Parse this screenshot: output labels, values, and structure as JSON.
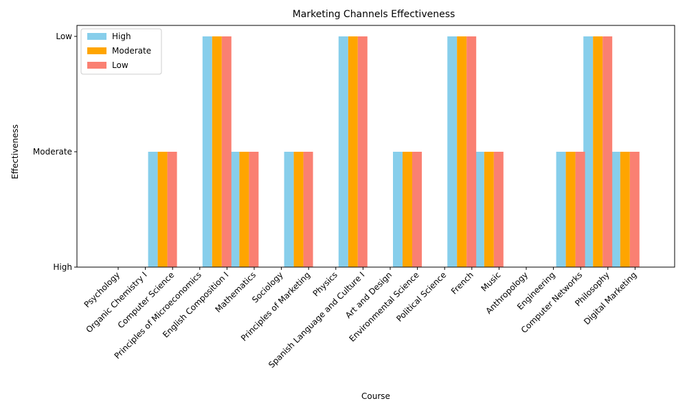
{
  "chart_data": {
    "type": "bar",
    "title": "Marketing Channels Effectiveness",
    "xlabel": "Course",
    "ylabel": "Effectiveness",
    "y_tick_labels": [
      "High",
      "Moderate",
      "Low"
    ],
    "y_tick_values": [
      0,
      1,
      2
    ],
    "ylim": [
      0,
      2
    ],
    "grid": false,
    "legend_position": "top-left",
    "categories": [
      "Psychology",
      "Organic Chemistry I",
      "Computer Science",
      "Principles of Microeconomics",
      "English Composition I",
      "Mathematics",
      "Sociology",
      "Principles of Marketing",
      "Physics",
      "Spanish Language and Culture I",
      "Art and Design",
      "Environmental Science",
      "Political Science",
      "French",
      "Music",
      "Anthropology",
      "Engineering",
      "Computer Networks",
      "Philosophy",
      "Digital Marketing"
    ],
    "series": [
      {
        "name": "High",
        "color": "#87ceeb",
        "values": [
          0,
          1,
          0,
          2,
          1,
          0,
          1,
          0,
          2,
          0,
          1,
          0,
          2,
          1,
          0,
          0,
          1,
          2,
          1,
          0
        ]
      },
      {
        "name": "Moderate",
        "color": "#ffa500",
        "values": [
          0,
          1,
          0,
          2,
          1,
          0,
          1,
          0,
          2,
          0,
          1,
          0,
          2,
          1,
          0,
          0,
          1,
          2,
          1,
          0
        ]
      },
      {
        "name": "Low",
        "color": "#fa8072",
        "values": [
          0,
          1,
          0,
          2,
          1,
          0,
          1,
          0,
          2,
          0,
          1,
          0,
          2,
          1,
          0,
          0,
          1,
          2,
          1,
          0
        ]
      }
    ]
  }
}
